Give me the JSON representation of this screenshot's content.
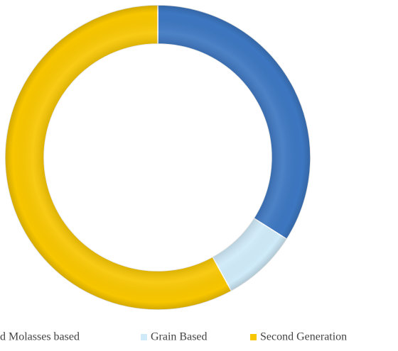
{
  "chart_data": {
    "type": "donut",
    "categories": [
      "d Molasses based",
      "Grain Based",
      "Second Generation"
    ],
    "values": [
      34,
      8,
      58
    ],
    "colors": [
      "#3d77c1",
      "#cfeaf8",
      "#f7c600"
    ],
    "legend": "bottom"
  }
}
